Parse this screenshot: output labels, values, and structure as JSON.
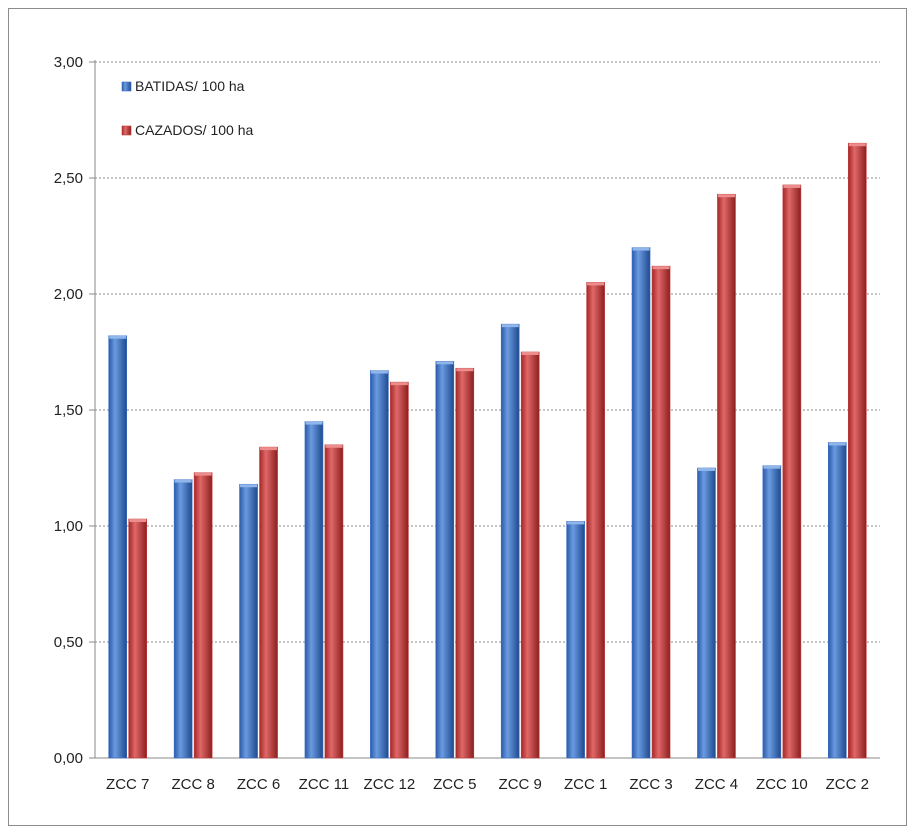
{
  "chart_data": {
    "type": "bar",
    "title": "",
    "xlabel": "",
    "ylabel": "",
    "categories": [
      "ZCC 7",
      "ZCC 8",
      "ZCC 6",
      "ZCC 11",
      "ZCC 12",
      "ZCC 5",
      "ZCC 9",
      "ZCC 1",
      "ZCC 3",
      "ZCC 4",
      "ZCC 10",
      "ZCC 2"
    ],
    "series": [
      {
        "name": "BATIDAS/ 100 ha",
        "color": "#3a6fc4",
        "values": [
          1.82,
          1.2,
          1.18,
          1.45,
          1.67,
          1.71,
          1.87,
          1.02,
          2.2,
          1.25,
          1.26,
          1.36
        ]
      },
      {
        "name": "CAZADOS/ 100 ha",
        "color": "#c33a3a",
        "values": [
          1.03,
          1.23,
          1.34,
          1.35,
          1.62,
          1.68,
          1.75,
          2.05,
          2.12,
          2.43,
          2.47,
          2.65
        ]
      }
    ],
    "ylim": [
      0,
      3
    ],
    "yticks": [
      "0,00",
      "0,50",
      "1,00",
      "1,50",
      "2,00",
      "2,50",
      "3,00"
    ],
    "grid": true,
    "legend_position": "top-left"
  }
}
